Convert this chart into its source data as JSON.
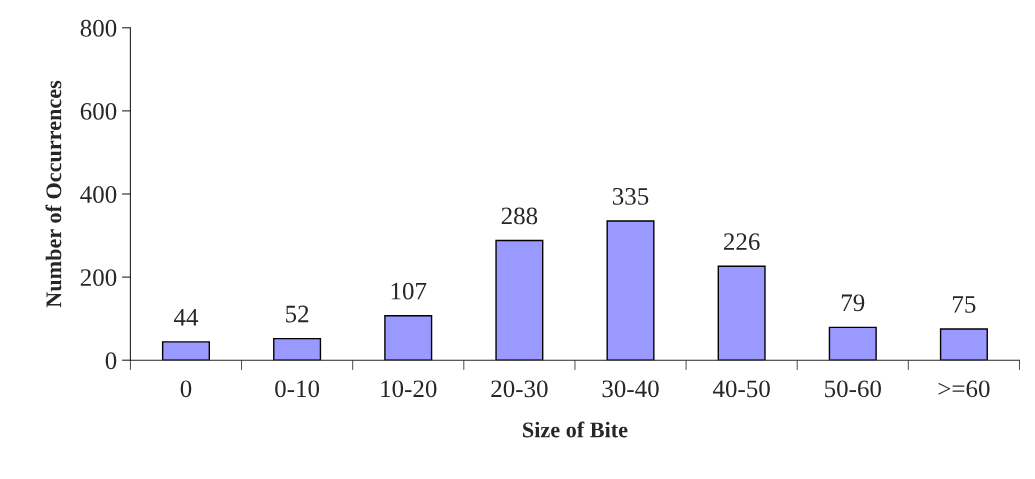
{
  "chart_data": {
    "type": "bar",
    "xlabel": "Size of Bite",
    "ylabel": "Number of Occurrences",
    "categories": [
      "0",
      "0-10",
      "10-20",
      "20-30",
      "30-40",
      "40-50",
      "50-60",
      ">=60"
    ],
    "values": [
      44,
      52,
      107,
      288,
      335,
      226,
      79,
      75
    ],
    "color": "#9999ff",
    "ylim": [
      0,
      800
    ],
    "yticks": [
      0,
      200,
      400,
      600,
      800
    ],
    "data_labels": true,
    "grid": false,
    "legend": false
  }
}
